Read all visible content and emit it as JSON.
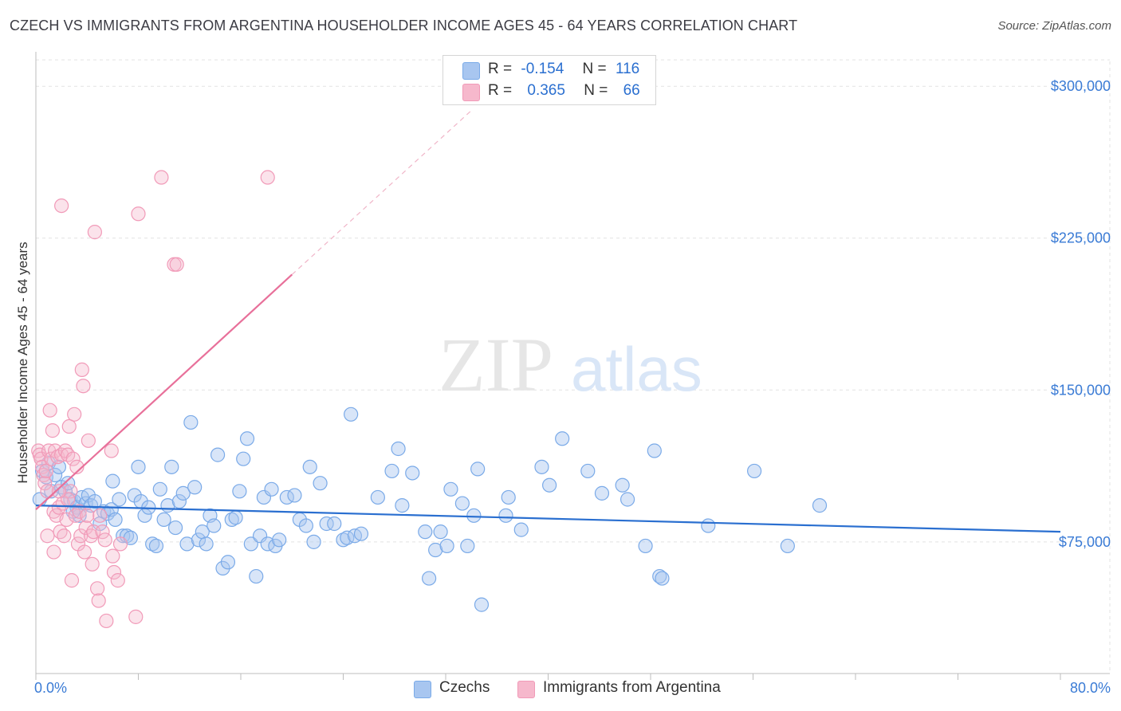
{
  "header": {
    "title": "CZECH VS IMMIGRANTS FROM ARGENTINA HOUSEHOLDER INCOME AGES 45 - 64 YEARS CORRELATION CHART",
    "source": "Source: ZipAtlas.com"
  },
  "watermark": {
    "zip": "ZIP",
    "atlas": "atlas"
  },
  "legend": {
    "rows": [
      {
        "r_label": "R =",
        "r_value": "-0.154",
        "n_label": "N =",
        "n_value": "116",
        "color": "#a8c6f0"
      },
      {
        "r_label": "R =",
        "r_value": "0.365",
        "n_label": "N =",
        "n_value": "66",
        "color": "#f6b8cc"
      }
    ]
  },
  "chart_data": {
    "type": "scatter",
    "ylabel": "Householder Income Ages 45 - 64 years",
    "x_tick_labels": [
      "0.0%",
      "80.0%"
    ],
    "y_tick_labels": [
      "$75,000",
      "$150,000",
      "$225,000",
      "$300,000"
    ],
    "y_ticks": [
      75000,
      150000,
      225000,
      300000
    ],
    "xlim": [
      0,
      80
    ],
    "ylim": [
      10000,
      317000
    ],
    "grid": true,
    "legend_position": "top-center",
    "series": [
      {
        "name": "Czechs",
        "color": "#7aaae8",
        "line_color": "#2a6fd0",
        "trend": {
          "x": [
            0,
            80
          ],
          "y": [
            93000,
            80000
          ]
        },
        "points": [
          [
            0.5,
            110000
          ],
          [
            0.8,
            107000
          ],
          [
            1,
            114000
          ],
          [
            1.2,
            100000
          ],
          [
            1.5,
            108000
          ],
          [
            1.8,
            112000
          ],
          [
            2,
            102000
          ],
          [
            2.3,
            100000
          ],
          [
            2.5,
            104000
          ],
          [
            2.7,
            96000
          ],
          [
            3,
            95000
          ],
          [
            3.2,
            92000
          ],
          [
            3.4,
            88000
          ],
          [
            3.6,
            97000
          ],
          [
            3.9,
            94000
          ],
          [
            4.1,
            98000
          ],
          [
            4.3,
            93000
          ],
          [
            4.6,
            95000
          ],
          [
            5,
            84000
          ],
          [
            5.3,
            90000
          ],
          [
            5.6,
            89000
          ],
          [
            5.9,
            91000
          ],
          [
            6.2,
            86000
          ],
          [
            6.5,
            96000
          ],
          [
            6.8,
            78000
          ],
          [
            7.1,
            78000
          ],
          [
            7.4,
            77000
          ],
          [
            7.7,
            98000
          ],
          [
            8,
            112000
          ],
          [
            8.2,
            95000
          ],
          [
            8.5,
            88000
          ],
          [
            8.8,
            92000
          ],
          [
            9.1,
            74000
          ],
          [
            9.4,
            73000
          ],
          [
            9.7,
            101000
          ],
          [
            10,
            86000
          ],
          [
            10.3,
            93000
          ],
          [
            10.6,
            112000
          ],
          [
            10.9,
            82000
          ],
          [
            11.2,
            95000
          ],
          [
            11.5,
            99000
          ],
          [
            11.8,
            74000
          ],
          [
            12.1,
            134000
          ],
          [
            12.4,
            102000
          ],
          [
            12.7,
            76000
          ],
          [
            13,
            80000
          ],
          [
            13.3,
            74000
          ],
          [
            13.6,
            88000
          ],
          [
            13.9,
            83000
          ],
          [
            14.2,
            118000
          ],
          [
            14.6,
            62000
          ],
          [
            15,
            65000
          ],
          [
            15.3,
            86000
          ],
          [
            15.6,
            87000
          ],
          [
            15.9,
            100000
          ],
          [
            16.2,
            116000
          ],
          [
            16.5,
            126000
          ],
          [
            16.8,
            74000
          ],
          [
            17.2,
            58000
          ],
          [
            17.5,
            78000
          ],
          [
            17.8,
            97000
          ],
          [
            18.1,
            74000
          ],
          [
            18.4,
            101000
          ],
          [
            18.7,
            73000
          ],
          [
            19,
            76000
          ],
          [
            19.6,
            97000
          ],
          [
            20.2,
            98000
          ],
          [
            20.6,
            86000
          ],
          [
            21.1,
            83000
          ],
          [
            21.4,
            112000
          ],
          [
            21.7,
            75000
          ],
          [
            22.2,
            104000
          ],
          [
            22.7,
            84000
          ],
          [
            23.3,
            84000
          ],
          [
            24,
            76000
          ],
          [
            24.3,
            77000
          ],
          [
            24.6,
            138000
          ],
          [
            24.9,
            78000
          ],
          [
            25.4,
            79000
          ],
          [
            26.7,
            97000
          ],
          [
            27.8,
            110000
          ],
          [
            28.3,
            121000
          ],
          [
            28.6,
            93000
          ],
          [
            29.4,
            109000
          ],
          [
            30.4,
            80000
          ],
          [
            30.7,
            57000
          ],
          [
            31.2,
            71000
          ],
          [
            31.6,
            80000
          ],
          [
            32.1,
            73000
          ],
          [
            32.4,
            101000
          ],
          [
            33.3,
            94000
          ],
          [
            33.7,
            73000
          ],
          [
            34.2,
            88000
          ],
          [
            34.5,
            111000
          ],
          [
            34.8,
            44000
          ],
          [
            36.7,
            88000
          ],
          [
            36.9,
            97000
          ],
          [
            37.9,
            81000
          ],
          [
            39.5,
            112000
          ],
          [
            40.1,
            103000
          ],
          [
            41.1,
            126000
          ],
          [
            43.1,
            110000
          ],
          [
            44.2,
            99000
          ],
          [
            45.8,
            103000
          ],
          [
            46.2,
            96000
          ],
          [
            47.6,
            73000
          ],
          [
            48.3,
            120000
          ],
          [
            48.7,
            58000
          ],
          [
            48.9,
            57000
          ],
          [
            52.5,
            83000
          ],
          [
            56.1,
            110000
          ],
          [
            58.7,
            73000
          ],
          [
            61.2,
            93000
          ],
          [
            0.3,
            96000
          ],
          [
            2.9,
            90000
          ],
          [
            6,
            105000
          ]
        ]
      },
      {
        "name": "Immigrants from Argentina",
        "color": "#f19ab8",
        "line_color": "#e8709a",
        "trend": {
          "x": [
            0,
            20
          ],
          "y": [
            91000,
            207000
          ]
        },
        "trend_dashed": {
          "x": [
            20,
            34
          ],
          "y": [
            207000,
            288000
          ]
        },
        "points": [
          [
            0.2,
            120000
          ],
          [
            0.3,
            118000
          ],
          [
            0.4,
            116000
          ],
          [
            0.5,
            112000
          ],
          [
            0.6,
            108000
          ],
          [
            0.7,
            104000
          ],
          [
            0.8,
            110000
          ],
          [
            0.9,
            100000
          ],
          [
            1,
            120000
          ],
          [
            1.1,
            140000
          ],
          [
            1.2,
            116000
          ],
          [
            1.3,
            130000
          ],
          [
            1.4,
            90000
          ],
          [
            1.5,
            120000
          ],
          [
            1.6,
            88000
          ],
          [
            1.7,
            117000
          ],
          [
            1.8,
            92000
          ],
          [
            1.9,
            80000
          ],
          [
            2,
            118000
          ],
          [
            2.1,
            94000
          ],
          [
            2.2,
            78000
          ],
          [
            2.3,
            120000
          ],
          [
            2.4,
            86000
          ],
          [
            2.5,
            118000
          ],
          [
            2.6,
            132000
          ],
          [
            2.7,
            100000
          ],
          [
            2.8,
            56000
          ],
          [
            2.9,
            116000
          ],
          [
            3,
            138000
          ],
          [
            3.1,
            88000
          ],
          [
            3.2,
            112000
          ],
          [
            3.3,
            74000
          ],
          [
            3.4,
            90000
          ],
          [
            3.5,
            78000
          ],
          [
            3.6,
            160000
          ],
          [
            3.7,
            152000
          ],
          [
            3.9,
            82000
          ],
          [
            4,
            88000
          ],
          [
            4.1,
            125000
          ],
          [
            4.3,
            78000
          ],
          [
            4.4,
            64000
          ],
          [
            4.5,
            80000
          ],
          [
            4.6,
            228000
          ],
          [
            4.8,
            52000
          ],
          [
            4.9,
            46000
          ],
          [
            5,
            88000
          ],
          [
            5.2,
            80000
          ],
          [
            5.4,
            76000
          ],
          [
            5.5,
            36000
          ],
          [
            5.9,
            120000
          ],
          [
            6,
            68000
          ],
          [
            6.1,
            60000
          ],
          [
            6.4,
            56000
          ],
          [
            6.6,
            74000
          ],
          [
            7.8,
            38000
          ],
          [
            8,
            237000
          ],
          [
            9.8,
            255000
          ],
          [
            10.8,
            212000
          ],
          [
            11,
            212000
          ],
          [
            18.1,
            255000
          ],
          [
            2,
            241000
          ],
          [
            2.5,
            96000
          ],
          [
            1.8,
            100000
          ],
          [
            3.8,
            70000
          ],
          [
            0.9,
            78000
          ],
          [
            1.4,
            70000
          ]
        ]
      }
    ]
  },
  "bottom_legend": {
    "items": [
      {
        "label": "Czechs",
        "color": "#a8c6f0"
      },
      {
        "label": "Immigrants from Argentina",
        "color": "#f6b8cc"
      }
    ]
  }
}
